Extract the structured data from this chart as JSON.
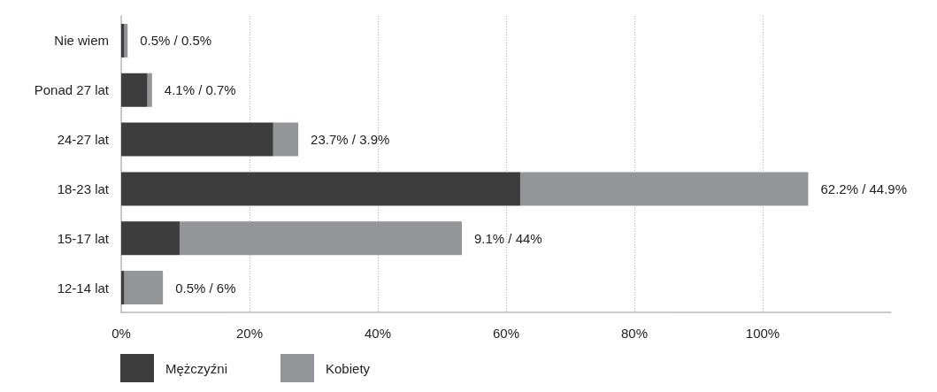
{
  "chart_data": {
    "type": "bar",
    "orientation": "horizontal",
    "stacked": true,
    "categories": [
      "Nie wiem",
      "Ponad 27 lat",
      "24-27 lat",
      "18-23 lat",
      "15-17 lat",
      "12-14 lat"
    ],
    "series": [
      {
        "name": "Mężczyźni",
        "color": "#3d3d3d",
        "values": [
          0.5,
          4.1,
          23.7,
          62.2,
          9.1,
          0.5
        ]
      },
      {
        "name": "Kobiety",
        "color": "#949598",
        "values": [
          0.5,
          0.7,
          3.9,
          44.9,
          44,
          6
        ]
      }
    ],
    "totals": [
      "0.5% / 0.5%",
      "4.1% / 0.7%",
      "23.7% / 3.9%",
      "62.2% / 44.9%",
      "9.1% / 44%",
      "0.5% / 6%"
    ],
    "xlim": [
      0,
      120
    ],
    "xticks": [
      {
        "value": 0,
        "label": "0%"
      },
      {
        "value": 20,
        "label": "20%"
      },
      {
        "value": 40,
        "label": "40%"
      },
      {
        "value": 60,
        "label": "60%"
      },
      {
        "value": 80,
        "label": "80%"
      },
      {
        "value": 100,
        "label": "100%"
      }
    ],
    "grid": "x",
    "legend": "bottom left"
  }
}
